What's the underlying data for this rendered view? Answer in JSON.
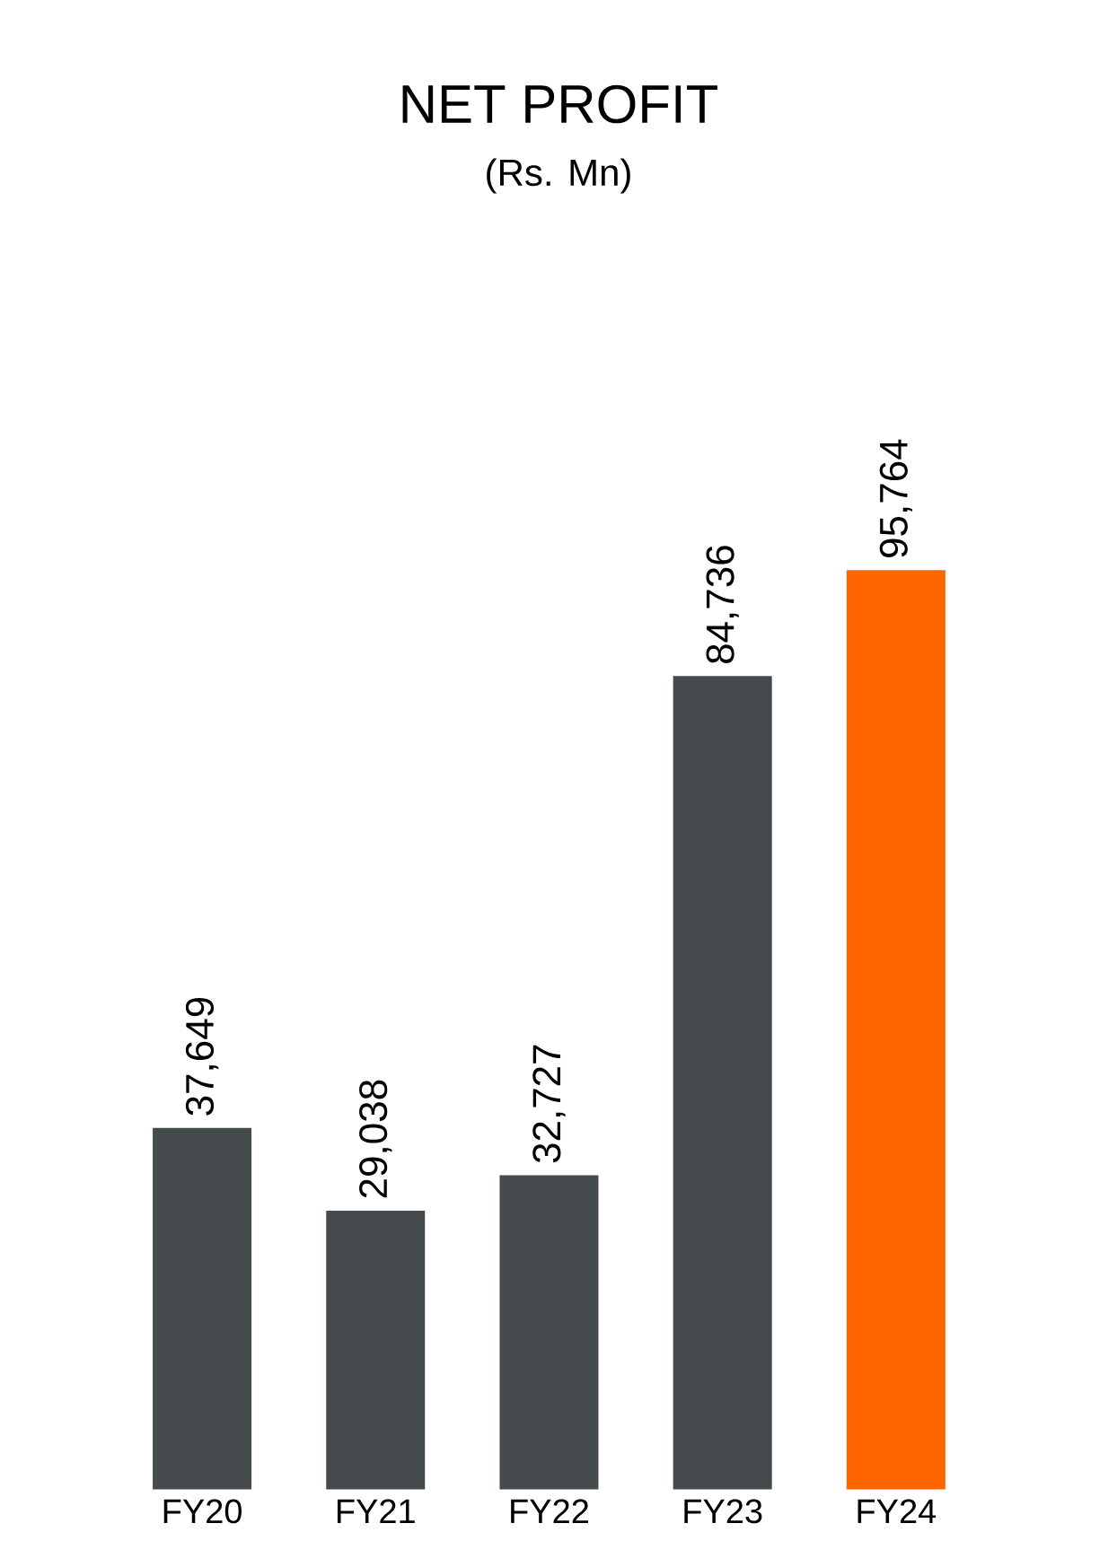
{
  "chart_data": {
    "type": "bar",
    "title": "NET PROFIT",
    "subtitle": "(Rs. Mn)",
    "categories": [
      "FY20",
      "FY21",
      "FY22",
      "FY23",
      "FY24"
    ],
    "values": [
      37649,
      29038,
      32727,
      84736,
      95764
    ],
    "value_labels": [
      "37,649",
      "29,038",
      "32,727",
      "84,736",
      "95,764"
    ],
    "colors": [
      "#454b4c",
      "#454b4c",
      "#454b4c",
      "#454b4c",
      "#ff6600"
    ]
  }
}
